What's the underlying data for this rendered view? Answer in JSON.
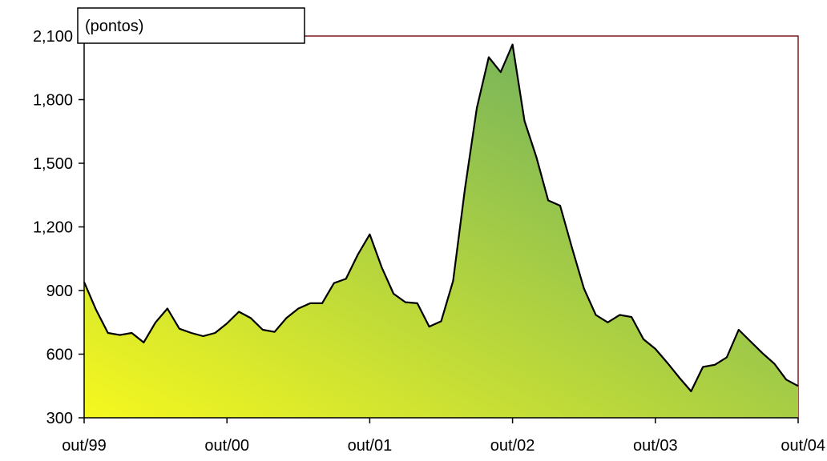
{
  "chart_data": {
    "type": "area",
    "unit_label": "(pontos)",
    "title": "",
    "xlabel": "",
    "ylabel": "",
    "ylim": [
      300,
      2100
    ],
    "yticks": [
      300,
      600,
      900,
      1200,
      1500,
      1800,
      2100
    ],
    "ytick_labels": [
      "300",
      "600",
      "900",
      "1,200",
      "1,500",
      "1,800",
      "2,100"
    ],
    "xtick_labels": [
      "out/99",
      "out/00",
      "out/01",
      "out/02",
      "out/03",
      "out/04"
    ],
    "xlim": [
      0,
      60
    ],
    "xticks": [
      0,
      12,
      24,
      36,
      48,
      60
    ],
    "grid": false,
    "fill_gradient": [
      "#f6f81e",
      "#5aa46a"
    ],
    "series": [
      {
        "x": [
          0,
          1,
          2,
          3,
          4,
          5,
          6,
          7,
          8,
          9,
          10,
          11,
          12,
          13,
          14,
          15,
          16,
          17,
          18,
          19,
          20,
          21,
          22,
          23,
          24,
          25,
          26,
          27,
          28,
          29,
          30,
          31,
          32,
          33,
          34,
          35,
          36,
          37,
          38,
          39,
          40,
          41,
          42,
          43,
          44,
          45,
          46,
          47,
          48,
          49,
          50,
          51,
          52,
          53,
          54,
          55,
          56,
          57,
          58,
          59,
          60
        ],
        "values": [
          940,
          810,
          700,
          690,
          700,
          655,
          750,
          815,
          720,
          700,
          685,
          700,
          745,
          800,
          770,
          715,
          705,
          770,
          815,
          840,
          840,
          935,
          955,
          1070,
          1165,
          1010,
          885,
          845,
          840,
          730,
          755,
          945,
          1380,
          1760,
          2000,
          1930,
          2060,
          1700,
          1530,
          1325,
          1300,
          1100,
          910,
          785,
          750,
          785,
          775,
          670,
          625,
          560,
          490,
          425,
          540,
          550,
          585,
          715,
          660,
          605,
          555,
          480,
          450
        ]
      }
    ]
  }
}
